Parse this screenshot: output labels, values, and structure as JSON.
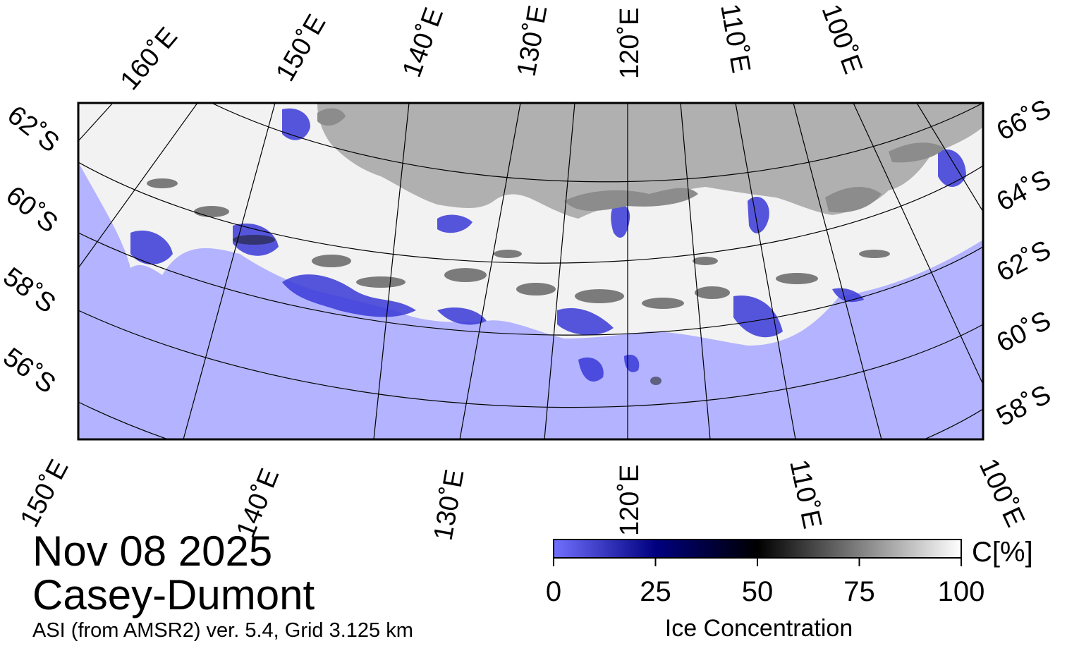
{
  "map": {
    "date": "Nov 08 2025",
    "region": "Casey-Dumont",
    "source": "ASI (from AMSR2) ver. 5.4,  Grid 3.125 km",
    "colors": {
      "open_water": "#b3b3ff",
      "land": "#b0b0b0",
      "ice_shelf": "#8c8c8c",
      "ice_high": "#ffffff",
      "frame": "#000000"
    },
    "longitude_labels_top": [
      "160˚E",
      "150˚E",
      "140˚E",
      "130˚E",
      "120˚E",
      "110˚E",
      "100˚E"
    ],
    "longitude_labels_bottom": [
      "150˚E",
      "140˚E",
      "130˚E",
      "120˚E",
      "110˚E",
      "100˚E"
    ],
    "latitude_labels_left": [
      "62˚S",
      "60˚S",
      "58˚S",
      "56˚S"
    ],
    "latitude_labels_right": [
      "66˚S",
      "64˚S",
      "62˚S",
      "60˚S",
      "58˚S"
    ]
  },
  "colorbar": {
    "title": "Ice Concentration",
    "unit": "C[%]",
    "ticks": [
      "0",
      "25",
      "50",
      "75",
      "100"
    ],
    "range": [
      0,
      100
    ],
    "stops": [
      {
        "value": 0,
        "color": "#7070ff"
      },
      {
        "value": 25,
        "color": "#000080"
      },
      {
        "value": 50,
        "color": "#000000"
      },
      {
        "value": 100,
        "color": "#ffffff"
      }
    ]
  }
}
